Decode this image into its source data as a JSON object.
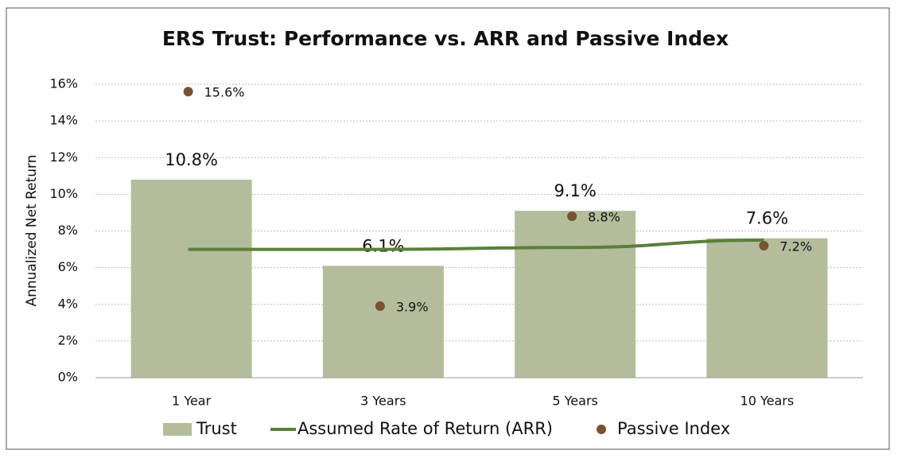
{
  "chart_data": {
    "type": "bar_line_scatter",
    "title": "ERS Trust: Performance vs. ARR and Passive Index",
    "y_label": "Annualized Net Return",
    "categories": [
      "1 Year",
      "3 Years",
      "5 Years",
      "10 Years"
    ],
    "series": [
      {
        "name": "Trust",
        "type": "bar",
        "color": "#b3bd9b",
        "values": [
          10.8,
          6.1,
          9.1,
          7.6
        ],
        "value_labels": [
          "10.8%",
          "6.1%",
          "9.1%",
          "7.6%"
        ]
      },
      {
        "name": "Assumed Rate of Return (ARR)",
        "type": "line",
        "color": "#5a7f3a",
        "values": [
          7.0,
          7.0,
          7.1,
          7.5
        ]
      },
      {
        "name": "Passive Index",
        "type": "scatter",
        "color": "#7a5233",
        "values": [
          15.6,
          3.9,
          8.8,
          7.2
        ],
        "value_labels": [
          "15.6%",
          "3.9%",
          "8.8%",
          "7.2%"
        ]
      }
    ],
    "ylim": [
      0,
      16
    ],
    "yticks": [
      {
        "value": 0,
        "label": "0%"
      },
      {
        "value": 2,
        "label": "2%"
      },
      {
        "value": 4,
        "label": "4%"
      },
      {
        "value": 6,
        "label": "6%"
      },
      {
        "value": 8,
        "label": "8%"
      },
      {
        "value": 10,
        "label": "10%"
      },
      {
        "value": 12,
        "label": "12%"
      },
      {
        "value": 14,
        "label": "14%"
      },
      {
        "value": 16,
        "label": "16%"
      }
    ],
    "grid": true
  }
}
